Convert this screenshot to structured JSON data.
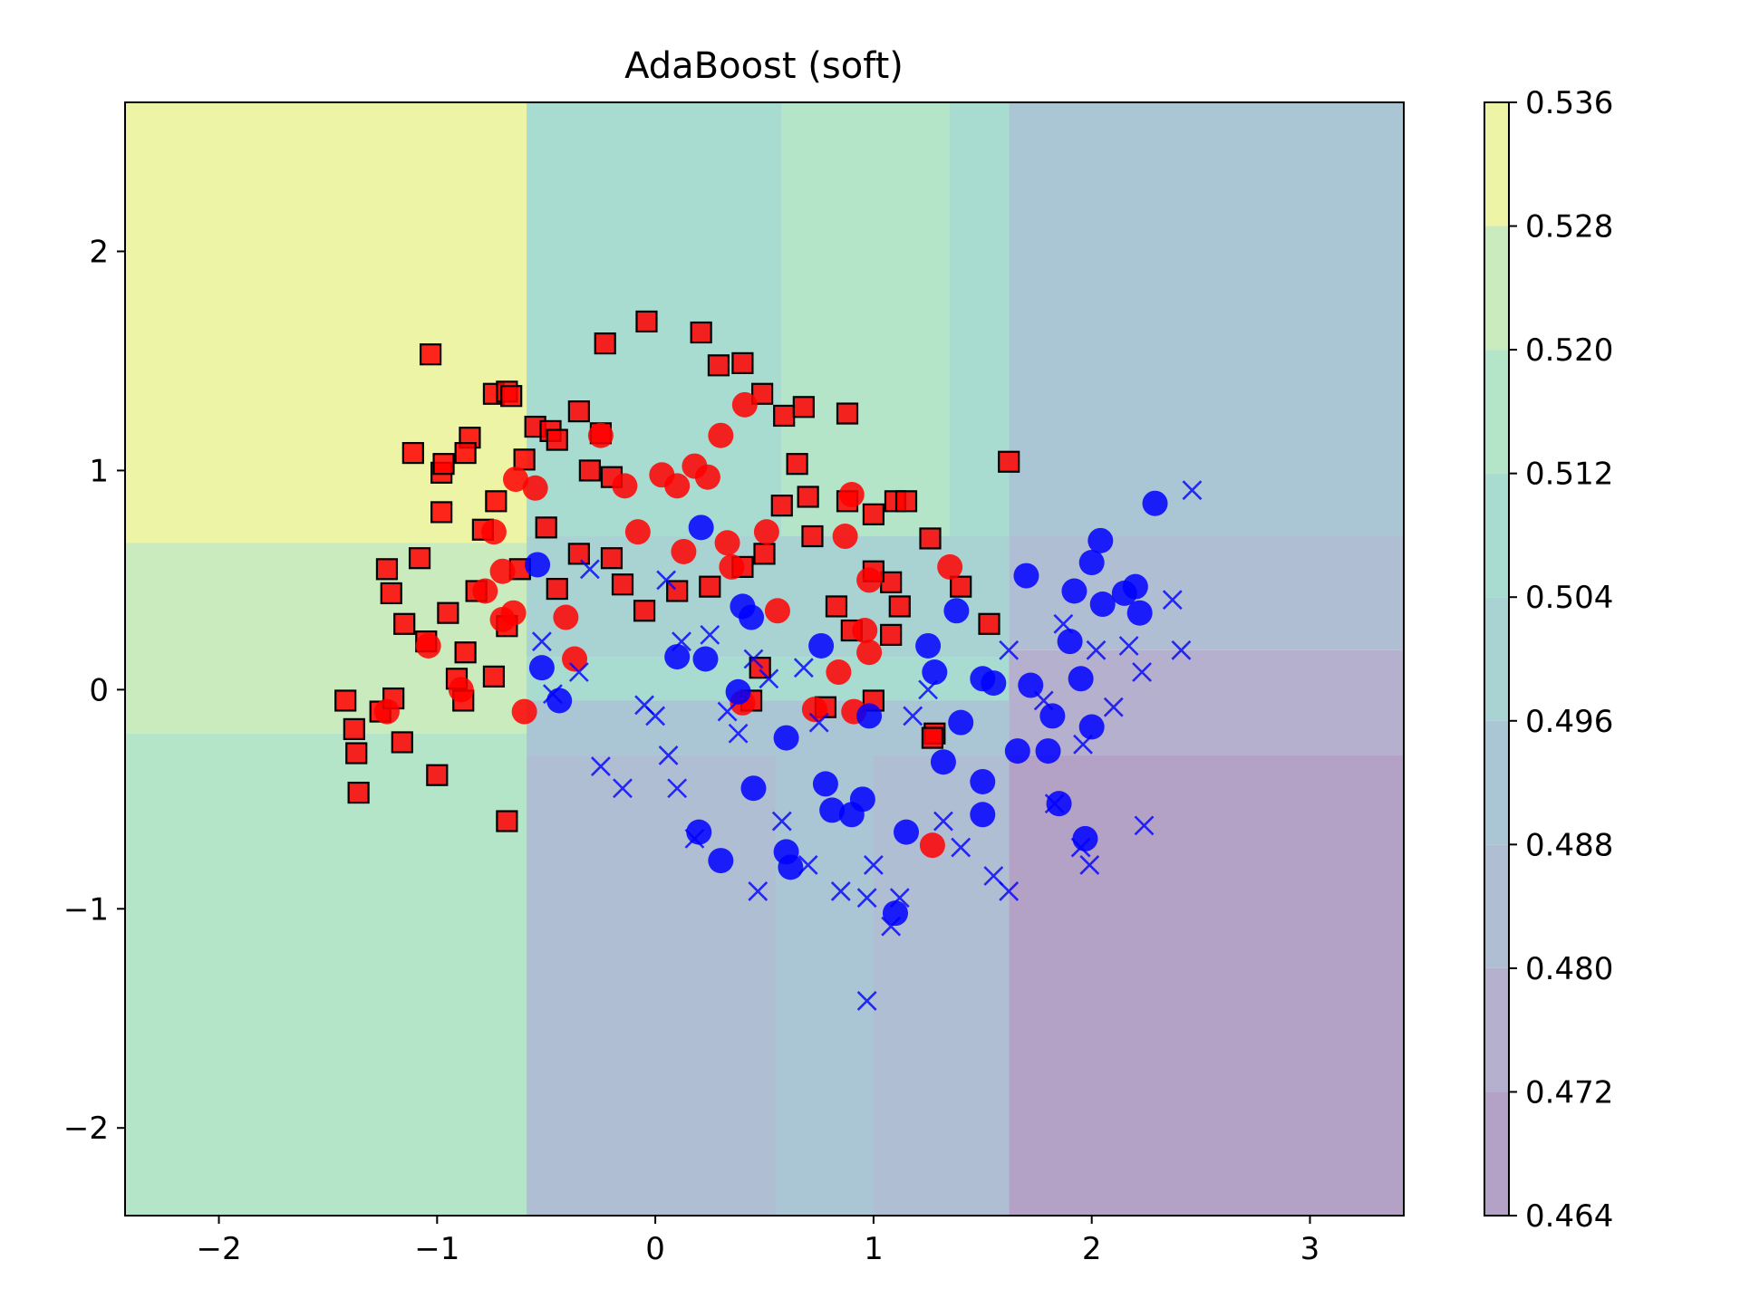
{
  "chart_data": {
    "type": "scatter",
    "title": "AdaBoost (soft)",
    "xlabel": "",
    "ylabel": "",
    "xlim": [
      -2.43,
      3.43
    ],
    "ylim": [
      -2.4,
      2.68
    ],
    "xticks": [
      -2,
      -1,
      0,
      1,
      2,
      3
    ],
    "xtick_labels": [
      "−2",
      "−1",
      "0",
      "1",
      "2",
      "3"
    ],
    "yticks": [
      -2,
      -1,
      0,
      1,
      2
    ],
    "ytick_labels": [
      "−2",
      "−1",
      "0",
      "1",
      "2"
    ],
    "grid": false,
    "colorbar": {
      "ticks": [
        "0.464",
        "0.472",
        "0.480",
        "0.488",
        "0.496",
        "0.504",
        "0.512",
        "0.520",
        "0.528",
        "0.536"
      ],
      "levels": [
        0.464,
        0.472,
        0.48,
        0.488,
        0.496,
        0.504,
        0.512,
        0.52,
        0.528,
        0.536
      ],
      "colors": [
        "#b4a2c6",
        "#b5b0cd",
        "#b0bed4",
        "#aac5d3",
        "#a8d3d2",
        "#a9dcd0",
        "#b4e5c8",
        "#c9ebbd",
        "#eef4a6"
      ]
    },
    "decision_regions": [
      {
        "x0": -2.43,
        "x1": -0.59,
        "y0": 0.67,
        "y1": 2.68,
        "level": 0.532
      },
      {
        "x0": -2.43,
        "x1": -0.59,
        "y0": -0.2,
        "y1": 0.67,
        "level": 0.524
      },
      {
        "x0": -2.43,
        "x1": -0.59,
        "y0": -2.4,
        "y1": -0.2,
        "level": 0.516
      },
      {
        "x0": -0.59,
        "x1": 0.58,
        "y0": 0.7,
        "y1": 2.68,
        "level": 0.508
      },
      {
        "x0": 0.58,
        "x1": 1.62,
        "y0": 0.7,
        "y1": 2.68,
        "level": 0.516
      },
      {
        "x0": 1.35,
        "x1": 1.62,
        "y0": 0.7,
        "y1": 2.68,
        "level": 0.508
      },
      {
        "x0": -0.59,
        "x1": 1.62,
        "y0": 0.15,
        "y1": 0.7,
        "level": 0.5
      },
      {
        "x0": -0.59,
        "x1": 1.62,
        "y0": -0.05,
        "y1": 0.15,
        "level": 0.508
      },
      {
        "x0": -0.59,
        "x1": 1.62,
        "y0": -0.3,
        "y1": -0.05,
        "level": 0.492
      },
      {
        "x0": -0.59,
        "x1": 1.62,
        "y0": -2.4,
        "y1": -0.3,
        "level": 0.484
      },
      {
        "x0": 0.55,
        "x1": 1.0,
        "y0": -2.4,
        "y1": -0.3,
        "level": 0.492
      },
      {
        "x0": 1.62,
        "x1": 3.43,
        "y0": 0.7,
        "y1": 2.68,
        "level": 0.492
      },
      {
        "x0": 1.62,
        "x1": 3.43,
        "y0": 0.18,
        "y1": 0.7,
        "level": 0.484
      },
      {
        "x0": 1.62,
        "x1": 3.43,
        "y0": -0.3,
        "y1": 0.18,
        "level": 0.476
      },
      {
        "x0": 1.62,
        "x1": 3.43,
        "y0": -2.4,
        "y1": -0.3,
        "level": 0.468
      }
    ],
    "series": [
      {
        "marker": "square",
        "color": "#ff0000",
        "points": [
          [
            -1.42,
            -0.05
          ],
          [
            -1.38,
            -0.18
          ],
          [
            -1.37,
            -0.29
          ],
          [
            -1.36,
            -0.47
          ],
          [
            -1.26,
            -0.1
          ],
          [
            -1.2,
            -0.04
          ],
          [
            -1.16,
            -0.24
          ],
          [
            -1.0,
            -0.39
          ],
          [
            -1.03,
            1.53
          ],
          [
            -1.11,
            1.08
          ],
          [
            -0.98,
            0.99
          ],
          [
            -0.97,
            1.03
          ],
          [
            -0.85,
            1.15
          ],
          [
            -0.87,
            1.08
          ],
          [
            -0.98,
            0.81
          ],
          [
            -0.74,
            1.35
          ],
          [
            -0.68,
            1.36
          ],
          [
            -0.66,
            1.34
          ],
          [
            -1.23,
            0.55
          ],
          [
            -1.21,
            0.44
          ],
          [
            -1.15,
            0.3
          ],
          [
            -1.08,
            0.6
          ],
          [
            -1.05,
            0.22
          ],
          [
            -0.95,
            0.35
          ],
          [
            -0.87,
            0.17
          ],
          [
            -0.91,
            0.05
          ],
          [
            -0.88,
            -0.05
          ],
          [
            -0.82,
            0.45
          ],
          [
            -0.79,
            0.73
          ],
          [
            -0.73,
            0.86
          ],
          [
            -0.68,
            -0.6
          ],
          [
            -0.6,
            1.05
          ],
          [
            -0.55,
            1.2
          ],
          [
            -0.48,
            1.18
          ],
          [
            -0.45,
            1.14
          ],
          [
            -0.35,
            1.27
          ],
          [
            -0.3,
            1.0
          ],
          [
            -0.25,
            1.17
          ],
          [
            -0.2,
            0.97
          ],
          [
            -0.23,
            1.58
          ],
          [
            -0.04,
            1.68
          ],
          [
            0.21,
            1.63
          ],
          [
            0.29,
            1.48
          ],
          [
            0.4,
            1.49
          ],
          [
            0.49,
            1.35
          ],
          [
            0.59,
            1.25
          ],
          [
            0.68,
            1.29
          ],
          [
            0.88,
            1.26
          ],
          [
            0.65,
            1.03
          ],
          [
            0.58,
            0.84
          ],
          [
            0.7,
            0.88
          ],
          [
            0.72,
            0.7
          ],
          [
            0.88,
            0.86
          ],
          [
            1.0,
            0.8
          ],
          [
            1.1,
            0.86
          ],
          [
            1.15,
            0.86
          ],
          [
            1.26,
            0.69
          ],
          [
            1.08,
            0.49
          ],
          [
            1.12,
            0.38
          ],
          [
            1.0,
            0.54
          ],
          [
            0.83,
            0.38
          ],
          [
            0.9,
            0.27
          ],
          [
            0.5,
            0.62
          ],
          [
            0.4,
            0.56
          ],
          [
            0.25,
            0.47
          ],
          [
            0.1,
            0.45
          ],
          [
            -0.05,
            0.36
          ],
          [
            -0.15,
            0.48
          ],
          [
            -0.2,
            0.6
          ],
          [
            -0.35,
            0.62
          ],
          [
            -0.5,
            0.74
          ],
          [
            -0.45,
            0.46
          ],
          [
            -0.62,
            0.55
          ],
          [
            -0.68,
            0.29
          ],
          [
            -0.74,
            0.06
          ],
          [
            1.62,
            1.04
          ],
          [
            1.53,
            0.3
          ],
          [
            1.4,
            0.47
          ],
          [
            1.28,
            -0.2
          ],
          [
            1.27,
            -0.22
          ],
          [
            1.0,
            -0.05
          ],
          [
            0.44,
            -0.05
          ],
          [
            0.78,
            -0.08
          ],
          [
            0.48,
            0.1
          ],
          [
            1.08,
            0.25
          ]
        ]
      },
      {
        "marker": "circle",
        "color": "#ff0000",
        "points": [
          [
            -1.23,
            -0.1
          ],
          [
            -1.04,
            0.2
          ],
          [
            -0.89,
            0.0
          ],
          [
            -0.78,
            0.45
          ],
          [
            -0.74,
            0.72
          ],
          [
            -0.7,
            0.32
          ],
          [
            -0.65,
            0.35
          ],
          [
            -0.6,
            -0.1
          ],
          [
            -0.64,
            0.96
          ],
          [
            -0.55,
            0.92
          ],
          [
            -0.41,
            0.33
          ],
          [
            -0.37,
            0.14
          ],
          [
            -0.25,
            1.16
          ],
          [
            -0.14,
            0.93
          ],
          [
            -0.08,
            0.72
          ],
          [
            0.03,
            0.98
          ],
          [
            0.1,
            0.93
          ],
          [
            0.18,
            1.02
          ],
          [
            0.24,
            0.97
          ],
          [
            0.33,
            0.67
          ],
          [
            0.35,
            0.56
          ],
          [
            0.41,
            1.3
          ],
          [
            0.4,
            -0.06
          ],
          [
            0.51,
            0.72
          ],
          [
            0.56,
            0.36
          ],
          [
            0.3,
            1.16
          ],
          [
            0.73,
            -0.09
          ],
          [
            0.84,
            0.08
          ],
          [
            0.9,
            0.89
          ],
          [
            0.87,
            0.7
          ],
          [
            0.91,
            -0.1
          ],
          [
            0.96,
            0.27
          ],
          [
            0.98,
            0.17
          ],
          [
            0.98,
            0.5
          ],
          [
            1.27,
            -0.71
          ],
          [
            1.35,
            0.56
          ],
          [
            -0.7,
            0.54
          ],
          [
            0.13,
            0.63
          ]
        ]
      },
      {
        "marker": "circle",
        "color": "#0000ff",
        "points": [
          [
            -0.54,
            0.57
          ],
          [
            -0.52,
            0.1
          ],
          [
            -0.44,
            -0.05
          ],
          [
            0.1,
            0.15
          ],
          [
            0.21,
            0.74
          ],
          [
            0.23,
            0.14
          ],
          [
            0.38,
            -0.01
          ],
          [
            0.4,
            0.38
          ],
          [
            0.45,
            -0.45
          ],
          [
            0.6,
            -0.74
          ],
          [
            0.62,
            -0.81
          ],
          [
            0.6,
            -0.22
          ],
          [
            0.76,
            0.2
          ],
          [
            0.78,
            -0.43
          ],
          [
            0.81,
            -0.55
          ],
          [
            0.9,
            -0.57
          ],
          [
            0.95,
            -0.5
          ],
          [
            0.98,
            -0.12
          ],
          [
            1.15,
            -0.65
          ],
          [
            1.1,
            -1.02
          ],
          [
            1.25,
            0.2
          ],
          [
            1.28,
            0.08
          ],
          [
            1.32,
            -0.33
          ],
          [
            1.38,
            0.36
          ],
          [
            1.4,
            -0.15
          ],
          [
            1.5,
            0.05
          ],
          [
            1.55,
            0.03
          ],
          [
            1.5,
            -0.57
          ],
          [
            1.5,
            -0.42
          ],
          [
            1.66,
            -0.28
          ],
          [
            1.7,
            0.52
          ],
          [
            1.72,
            0.02
          ],
          [
            1.8,
            -0.28
          ],
          [
            1.82,
            -0.12
          ],
          [
            1.85,
            -0.52
          ],
          [
            1.9,
            0.22
          ],
          [
            1.92,
            0.45
          ],
          [
            1.95,
            0.05
          ],
          [
            1.97,
            -0.68
          ],
          [
            2.0,
            -0.17
          ],
          [
            2.0,
            0.58
          ],
          [
            2.04,
            0.68
          ],
          [
            2.05,
            0.39
          ],
          [
            2.15,
            0.44
          ],
          [
            2.2,
            0.47
          ],
          [
            2.22,
            0.35
          ],
          [
            2.29,
            0.85
          ],
          [
            0.2,
            -0.65
          ],
          [
            0.3,
            -0.78
          ],
          [
            0.44,
            0.33
          ]
        ]
      },
      {
        "marker": "x",
        "color": "#0000ff",
        "points": [
          [
            -0.52,
            0.22
          ],
          [
            -0.47,
            -0.02
          ],
          [
            -0.35,
            0.08
          ],
          [
            -0.25,
            -0.35
          ],
          [
            -0.15,
            -0.45
          ],
          [
            -0.05,
            -0.07
          ],
          [
            0.0,
            -0.12
          ],
          [
            0.06,
            -0.3
          ],
          [
            0.1,
            -0.45
          ],
          [
            0.18,
            -0.68
          ],
          [
            0.25,
            0.25
          ],
          [
            0.33,
            -0.1
          ],
          [
            0.38,
            -0.2
          ],
          [
            0.47,
            -0.92
          ],
          [
            0.52,
            0.05
          ],
          [
            0.58,
            -0.6
          ],
          [
            0.7,
            -0.8
          ],
          [
            0.75,
            -0.15
          ],
          [
            0.85,
            -0.92
          ],
          [
            0.97,
            -1.42
          ],
          [
            0.97,
            -0.95
          ],
          [
            1.0,
            -0.8
          ],
          [
            1.08,
            -1.08
          ],
          [
            1.12,
            -0.95
          ],
          [
            1.18,
            -0.12
          ],
          [
            1.32,
            -0.6
          ],
          [
            1.4,
            -0.72
          ],
          [
            1.55,
            -0.85
          ],
          [
            1.62,
            -0.92
          ],
          [
            1.62,
            0.18
          ],
          [
            1.78,
            -0.05
          ],
          [
            1.83,
            -0.52
          ],
          [
            1.87,
            0.3
          ],
          [
            1.95,
            -0.72
          ],
          [
            1.99,
            -0.8
          ],
          [
            2.02,
            0.18
          ],
          [
            2.1,
            -0.08
          ],
          [
            2.17,
            0.2
          ],
          [
            2.23,
            0.08
          ],
          [
            2.24,
            -0.62
          ],
          [
            2.37,
            0.41
          ],
          [
            2.41,
            0.18
          ],
          [
            2.46,
            0.91
          ],
          [
            -0.3,
            0.55
          ],
          [
            0.05,
            0.5
          ],
          [
            0.12,
            0.22
          ],
          [
            0.45,
            0.14
          ],
          [
            0.68,
            0.1
          ],
          [
            1.25,
            0.0
          ],
          [
            1.96,
            -0.25
          ]
        ]
      }
    ]
  }
}
